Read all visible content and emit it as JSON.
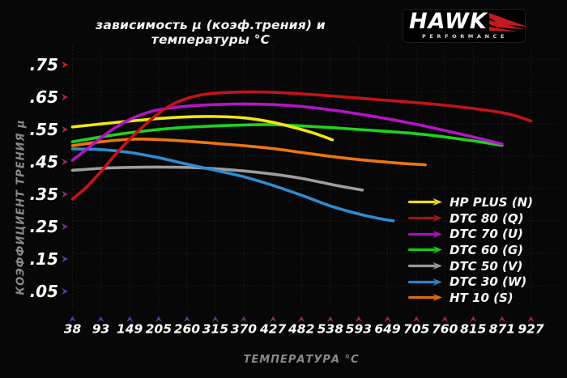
{
  "logo": {
    "brand": "HAWK",
    "subbrand": "PERFORMANCE",
    "accent": "#c01b20"
  },
  "chart_data": {
    "type": "line",
    "title": "зависимость μ (коэф.трения) и температуры °C",
    "xlabel": "ТЕМПЕРАТУРА °C",
    "ylabel": "КОЭФФИЦИЕНТ ТРЕНИЯ μ",
    "x_ticks": [
      38,
      93,
      149,
      205,
      260,
      315,
      370,
      427,
      482,
      538,
      593,
      649,
      705,
      760,
      815,
      871,
      927
    ],
    "y_tick_labels": [
      ".05",
      ".15",
      ".25",
      ".35",
      ".45",
      ".55",
      ".65",
      ".75"
    ],
    "y_tick_values": [
      0.05,
      0.15,
      0.25,
      0.35,
      0.45,
      0.55,
      0.65,
      0.75
    ],
    "xlim": [
      38,
      927
    ],
    "ylim": [
      0.04,
      0.8
    ],
    "grid": true,
    "grid_color": "#212121",
    "background": "#070707",
    "tick_label_color": "#fdfdfd",
    "axis_title_color": "#8a8a8a",
    "axis_gradient": {
      "cold": "#4b3cc4",
      "hot": "#cf1a22"
    },
    "legend_position": "inside-right",
    "series": [
      {
        "name": "HP PLUS (N)",
        "color": "#f2e412",
        "legend_color": "#ecdc10",
        "points": [
          [
            38,
            0.558
          ],
          [
            93,
            0.567
          ],
          [
            149,
            0.576
          ],
          [
            205,
            0.584
          ],
          [
            260,
            0.589
          ],
          [
            315,
            0.59
          ],
          [
            370,
            0.586
          ],
          [
            427,
            0.572
          ],
          [
            482,
            0.55
          ],
          [
            515,
            0.534
          ],
          [
            542,
            0.518
          ]
        ]
      },
      {
        "name": "DTC 80 (Q)",
        "color": "#c41318",
        "legend_color": "#9e1518",
        "points": [
          [
            38,
            0.335
          ],
          [
            65,
            0.372
          ],
          [
            93,
            0.42
          ],
          [
            121,
            0.472
          ],
          [
            149,
            0.52
          ],
          [
            177,
            0.562
          ],
          [
            205,
            0.6
          ],
          [
            232,
            0.628
          ],
          [
            260,
            0.646
          ],
          [
            288,
            0.657
          ],
          [
            315,
            0.662
          ],
          [
            370,
            0.666
          ],
          [
            427,
            0.665
          ],
          [
            482,
            0.66
          ],
          [
            538,
            0.654
          ],
          [
            593,
            0.647
          ],
          [
            649,
            0.64
          ],
          [
            705,
            0.633
          ],
          [
            760,
            0.625
          ],
          [
            815,
            0.615
          ],
          [
            871,
            0.602
          ],
          [
            900,
            0.591
          ],
          [
            927,
            0.576
          ]
        ]
      },
      {
        "name": "DTC 70 (U)",
        "color": "#b414c6",
        "legend_color": "#a811b6",
        "points": [
          [
            38,
            0.455
          ],
          [
            66,
            0.49
          ],
          [
            93,
            0.524
          ],
          [
            121,
            0.556
          ],
          [
            149,
            0.581
          ],
          [
            177,
            0.599
          ],
          [
            205,
            0.611
          ],
          [
            260,
            0.622
          ],
          [
            315,
            0.627
          ],
          [
            370,
            0.629
          ],
          [
            427,
            0.627
          ],
          [
            482,
            0.621
          ],
          [
            538,
            0.611
          ],
          [
            593,
            0.598
          ],
          [
            649,
            0.583
          ],
          [
            705,
            0.566
          ],
          [
            760,
            0.547
          ],
          [
            815,
            0.527
          ],
          [
            871,
            0.505
          ]
        ]
      },
      {
        "name": "DTC 60 (G)",
        "color": "#1bd41b",
        "legend_color": "#15c915",
        "points": [
          [
            38,
            0.512
          ],
          [
            93,
            0.527
          ],
          [
            149,
            0.54
          ],
          [
            205,
            0.55
          ],
          [
            260,
            0.557
          ],
          [
            315,
            0.561
          ],
          [
            370,
            0.564
          ],
          [
            427,
            0.565
          ],
          [
            482,
            0.561
          ],
          [
            538,
            0.556
          ],
          [
            593,
            0.55
          ],
          [
            649,
            0.544
          ],
          [
            705,
            0.537
          ],
          [
            760,
            0.527
          ],
          [
            815,
            0.515
          ],
          [
            871,
            0.501
          ]
        ]
      },
      {
        "name": "DTC 50 (V)",
        "color": "#9d9d9d",
        "legend_color": "#989898",
        "points": [
          [
            38,
            0.424
          ],
          [
            93,
            0.43
          ],
          [
            149,
            0.433
          ],
          [
            205,
            0.434
          ],
          [
            260,
            0.433
          ],
          [
            315,
            0.429
          ],
          [
            370,
            0.422
          ],
          [
            427,
            0.412
          ],
          [
            482,
            0.399
          ],
          [
            538,
            0.381
          ],
          [
            571,
            0.371
          ],
          [
            600,
            0.363
          ]
        ]
      },
      {
        "name": "DTC 30 (W)",
        "color": "#2f8cd0",
        "legend_color": "#2b84c4",
        "points": [
          [
            38,
            0.49
          ],
          [
            93,
            0.488
          ],
          [
            149,
            0.479
          ],
          [
            205,
            0.463
          ],
          [
            260,
            0.443
          ],
          [
            315,
            0.424
          ],
          [
            370,
            0.404
          ],
          [
            427,
            0.377
          ],
          [
            482,
            0.347
          ],
          [
            538,
            0.314
          ],
          [
            593,
            0.289
          ],
          [
            630,
            0.276
          ],
          [
            660,
            0.268
          ]
        ]
      },
      {
        "name": "HT 10 (S)",
        "color": "#ee750f",
        "legend_color": "#dd6a0c",
        "points": [
          [
            38,
            0.5
          ],
          [
            93,
            0.512
          ],
          [
            149,
            0.52
          ],
          [
            205,
            0.519
          ],
          [
            260,
            0.514
          ],
          [
            315,
            0.507
          ],
          [
            370,
            0.5
          ],
          [
            427,
            0.491
          ],
          [
            482,
            0.479
          ],
          [
            538,
            0.467
          ],
          [
            593,
            0.457
          ],
          [
            649,
            0.449
          ],
          [
            690,
            0.444
          ],
          [
            722,
            0.441
          ]
        ]
      }
    ]
  }
}
